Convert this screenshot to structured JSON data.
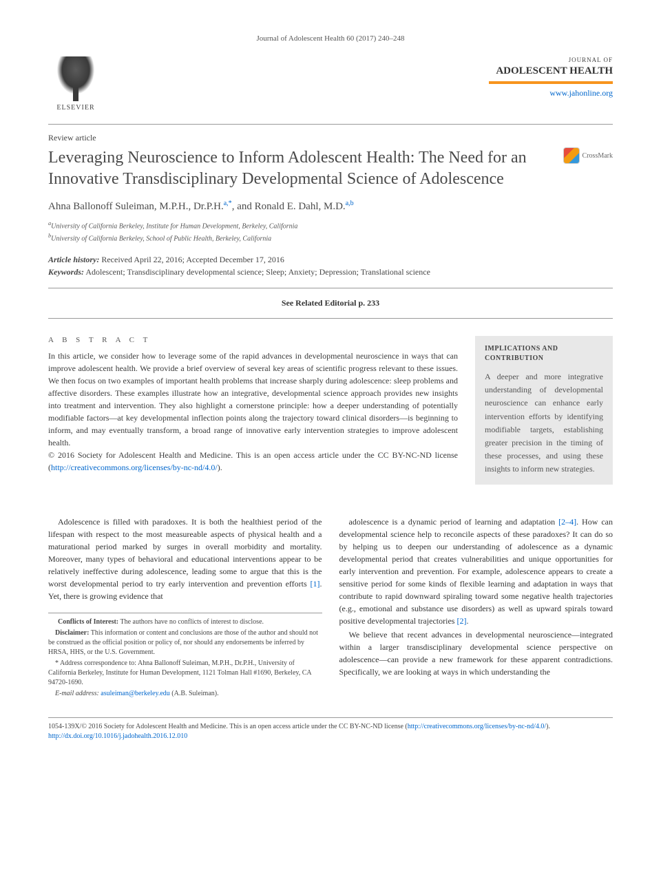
{
  "header": {
    "citation": "Journal of Adolescent Health 60 (2017) 240–248"
  },
  "publisher": {
    "name": "ELSEVIER"
  },
  "journal": {
    "label": "JOURNAL OF",
    "name": "ADOLESCENT HEALTH",
    "url": "www.jahonline.org"
  },
  "article_type": "Review article",
  "title": "Leveraging Neuroscience to Inform Adolescent Health: The Need for an Innovative Transdisciplinary Developmental Science of Adolescence",
  "crossmark": "CrossMark",
  "authors": {
    "a1_name": "Ahna Ballonoff Suleiman, M.P.H., Dr.P.H.",
    "a1_sup": "a,*",
    "sep": ", and ",
    "a2_name": "Ronald E. Dahl, M.D.",
    "a2_sup": "a,b"
  },
  "affiliations": {
    "a": "University of California Berkeley, Institute for Human Development, Berkeley, California",
    "b": "University of California Berkeley, School of Public Health, Berkeley, California"
  },
  "history": {
    "label": "Article history:",
    "text": " Received April 22, 2016; Accepted December 17, 2016"
  },
  "keywords": {
    "label": "Keywords:",
    "text": " Adolescent; Transdisciplinary developmental science; Sleep; Anxiety; Depression; Translational science"
  },
  "related": "See Related Editorial p. 233",
  "abstract": {
    "heading": "A B S T R A C T",
    "text": "In this article, we consider how to leverage some of the rapid advances in developmental neuroscience in ways that can improve adolescent health. We provide a brief overview of several key areas of scientific progress relevant to these issues. We then focus on two examples of important health problems that increase sharply during adolescence: sleep problems and affective disorders. These examples illustrate how an integrative, developmental science approach provides new insights into treatment and intervention. They also highlight a cornerstone principle: how a deeper understanding of potentially modifiable factors—at key developmental inflection points along the trajectory toward clinical disorders—is beginning to inform, and may eventually transform, a broad range of innovative early intervention strategies to improve adolescent health.",
    "copyright": "© 2016 Society for Adolescent Health and Medicine. This is an open access article under the CC BY-NC-ND license (",
    "license_url": "http://creativecommons.org/licenses/by-nc-nd/4.0/",
    "close": ")."
  },
  "implications": {
    "heading": "IMPLICATIONS AND CONTRIBUTION",
    "text": "A deeper and more integrative understanding of developmental neuroscience can enhance early intervention efforts by identifying modifiable targets, establishing greater precision in the timing of these processes, and using these insights to inform new strategies."
  },
  "body": {
    "col1_p1_a": "Adolescence is filled with paradoxes. It is both the healthiest period of the lifespan with respect to the most measureable aspects of physical health and a maturational period marked by surges in overall morbidity and mortality. Moreover, many types of behavioral and educational interventions appear to be relatively ineffective during adolescence, leading some to argue that this is the worst developmental period to try early intervention and prevention efforts ",
    "col1_r1": "[1]",
    "col1_p1_b": ". Yet, there is growing evidence that",
    "col2_p1_a": "adolescence is a dynamic period of learning and adaptation ",
    "col2_r1": "[2–4]",
    "col2_p1_b": ". How can developmental science help to reconcile aspects of these paradoxes? It can do so by helping us to deepen our understanding of adolescence as a dynamic developmental period that creates vulnerabilities and unique opportunities for early intervention and prevention. For example, adolescence appears to create a sensitive period for some kinds of flexible learning and adaptation in ways that contribute to rapid downward spiraling toward some negative health trajectories (e.g., emotional and substance use disorders) as well as upward spirals toward positive developmental trajectories ",
    "col2_r2": "[2]",
    "col2_p1_c": ".",
    "col2_p2": "We believe that recent advances in developmental neuroscience—integrated within a larger transdisciplinary developmental science perspective on adolescence—can provide a new framework for these apparent contradictions. Specifically, we are looking at ways in which understanding the"
  },
  "footnotes": {
    "conflicts_label": "Conflicts of Interest:",
    "conflicts": " The authors have no conflicts of interest to disclose.",
    "disclaimer_label": "Disclaimer:",
    "disclaimer": " This information or content and conclusions are those of the author and should not be construed as the official position or policy of, nor should any endorsements be inferred by HRSA, HHS, or the U.S. Government.",
    "corr": "* Address correspondence to: Ahna Ballonoff Suleiman, M.P.H., Dr.P.H., University of California Berkeley, Institute for Human Development, 1121 Tolman Hall #1690, Berkeley, CA 94720-1690.",
    "email_label": "E-mail address:",
    "email": "asuleiman@berkeley.edu",
    "email_suffix": " (A.B. Suleiman)."
  },
  "footer": {
    "line1_a": "1054-139X/© 2016 Society for Adolescent Health and Medicine. This is an open access article under the CC BY-NC-ND license (",
    "line1_url": "http://creativecommons.org/licenses/by-nc-nd/4.0/",
    "line1_b": ").",
    "doi": "http://dx.doi.org/10.1016/j.jadohealth.2016.12.010"
  }
}
